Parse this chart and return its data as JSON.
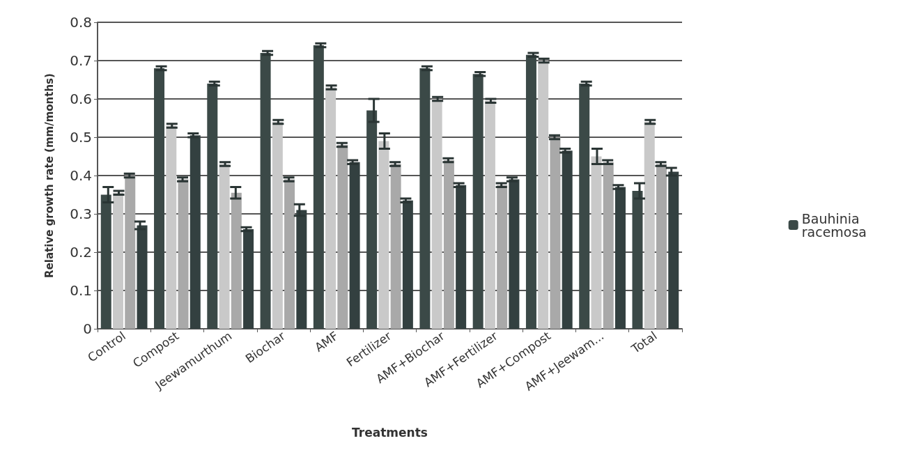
{
  "chart_data": {
    "type": "bar",
    "xlabel": "Treatments",
    "ylabel": "Relative growth rate (mm/months)",
    "categories": [
      "Control",
      "Compost",
      "Jeewamurthum",
      "Biochar",
      "AMF",
      "Fertilizer",
      "AMF+Biochar",
      "AMF+Fertilizer",
      "AMF+Compost",
      "AMF+Jeewam...",
      "Total"
    ],
    "series": [
      {
        "name": "Bauhinia racemosa",
        "color": "#3b4947",
        "values": [
          0.35,
          0.68,
          0.64,
          0.72,
          0.74,
          0.57,
          0.68,
          0.665,
          0.715,
          0.64,
          0.36
        ],
        "errors": [
          0.02,
          0.005,
          0.005,
          0.005,
          0.005,
          0.03,
          0.005,
          0.005,
          0.005,
          0.005,
          0.02
        ]
      },
      {
        "color": "#c9c9c9",
        "values": [
          0.355,
          0.53,
          0.43,
          0.54,
          0.63,
          0.49,
          0.6,
          0.595,
          0.7,
          0.45,
          0.54
        ],
        "errors": [
          0.005,
          0.005,
          0.005,
          0.005,
          0.005,
          0.02,
          0.005,
          0.005,
          0.005,
          0.02,
          0.005
        ]
      },
      {
        "color": "#a9a9a9",
        "values": [
          0.4,
          0.39,
          0.355,
          0.39,
          0.48,
          0.43,
          0.44,
          0.375,
          0.5,
          0.435,
          0.43
        ],
        "errors": [
          0.005,
          0.005,
          0.015,
          0.005,
          0.005,
          0.005,
          0.005,
          0.005,
          0.005,
          0.005,
          0.005
        ]
      },
      {
        "color": "#334040",
        "values": [
          0.27,
          0.505,
          0.26,
          0.31,
          0.435,
          0.335,
          0.375,
          0.39,
          0.465,
          0.37,
          0.41
        ],
        "errors": [
          0.01,
          0.005,
          0.005,
          0.015,
          0.005,
          0.005,
          0.005,
          0.005,
          0.005,
          0.005,
          0.01
        ]
      }
    ],
    "ylim": [
      0,
      0.8
    ],
    "yticks": [
      0,
      0.1,
      0.2,
      0.3,
      0.4,
      0.5,
      0.6,
      0.7,
      0.8
    ],
    "grid": "y",
    "legend": "right"
  }
}
